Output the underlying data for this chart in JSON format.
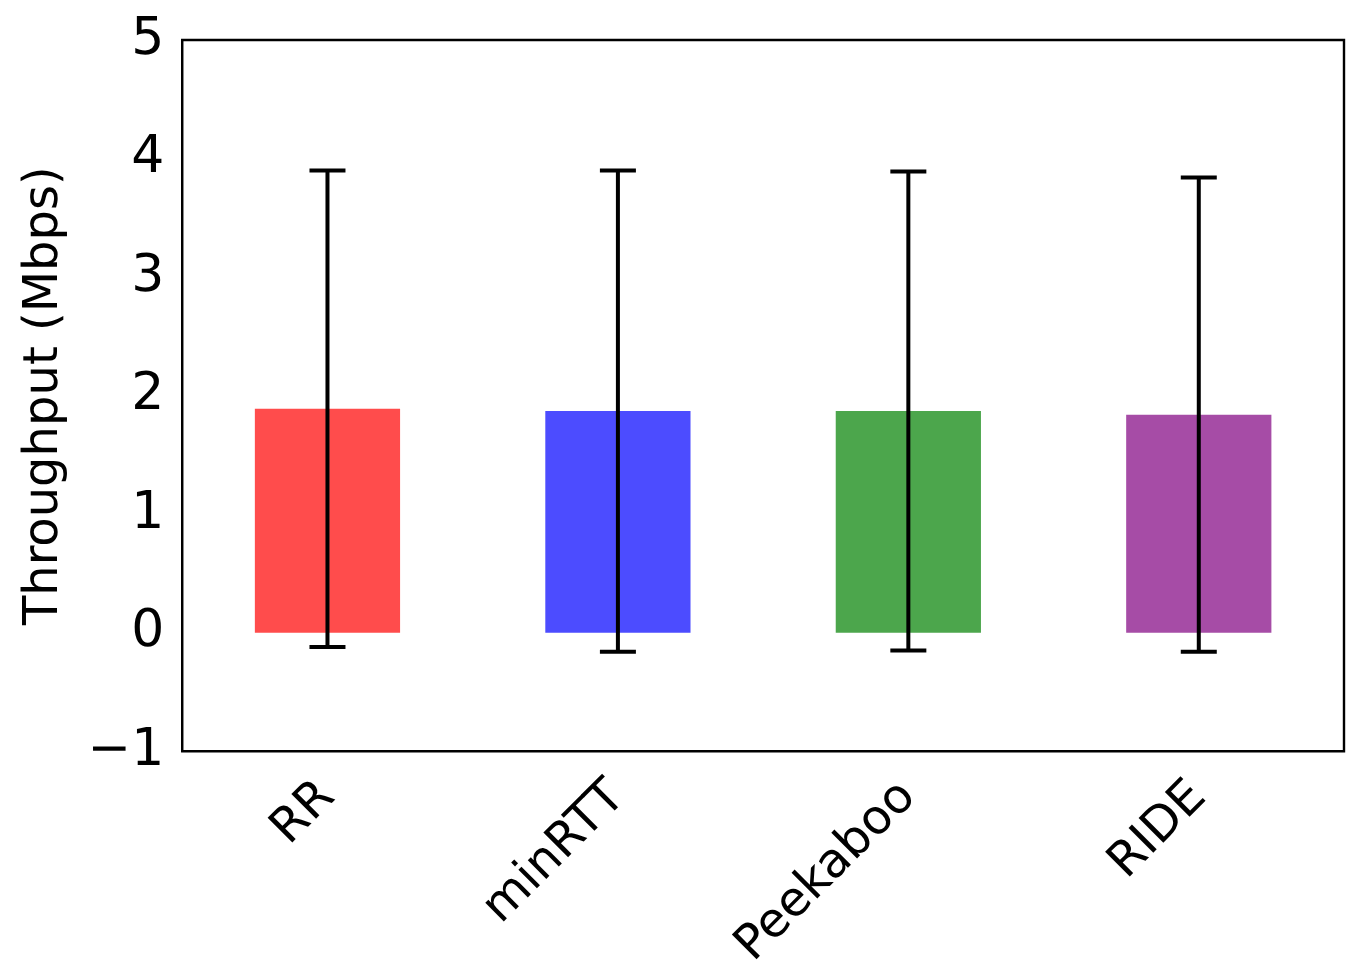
{
  "chart_data": {
    "type": "bar",
    "ylabel": "Throughput (Mbps)",
    "categories": [
      "RR",
      "minRTT",
      "Peekaboo",
      "RIDE"
    ],
    "values": [
      1.89,
      1.87,
      1.87,
      1.84
    ],
    "colors": [
      "#ff4c4c",
      "#4c4cff",
      "#4ca64c",
      "#a64ca6"
    ],
    "errors": [
      2.01,
      2.03,
      2.02,
      2.0
    ],
    "ylim": [
      -1,
      5
    ],
    "yticks": [
      -1,
      0,
      1,
      2,
      3,
      4,
      5
    ],
    "grid": false,
    "legend": false
  }
}
